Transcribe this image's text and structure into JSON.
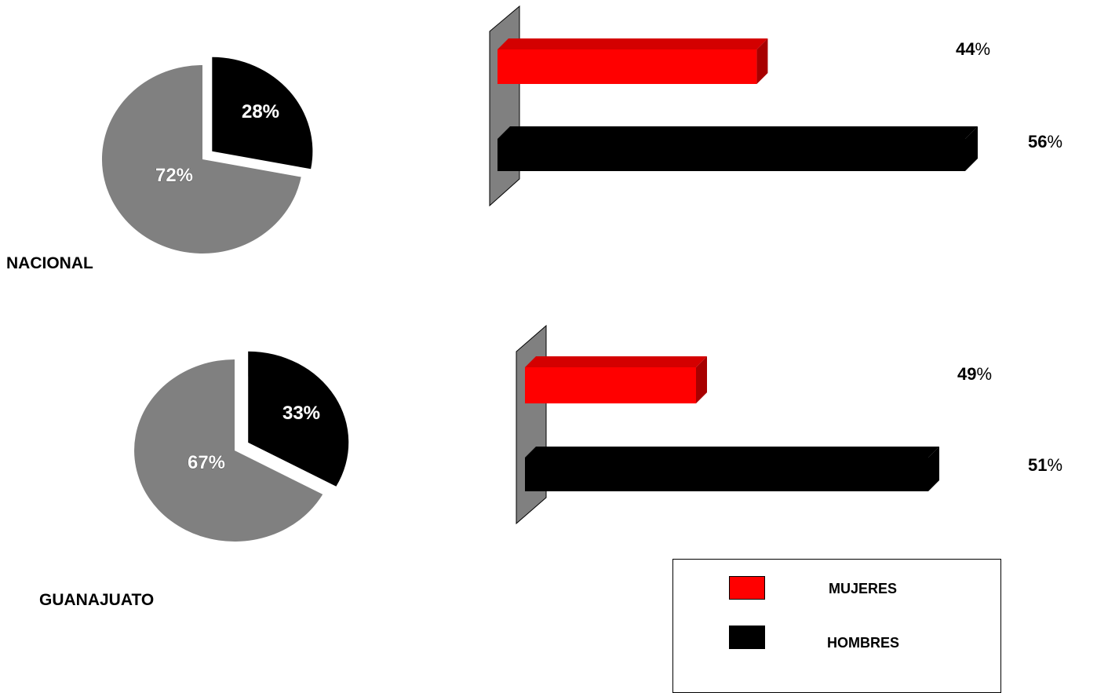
{
  "colors": {
    "mujeres": "#ff0000",
    "mujeres_dark": "#a80000",
    "mujeres_top": "#d40000",
    "hombres": "#000000",
    "pie_major": "#808080",
    "wall": "#808080"
  },
  "chart_data": [
    {
      "type": "pie",
      "title": "NACIONAL",
      "slices": [
        {
          "label": "28%",
          "value": 28,
          "color": "#000000",
          "exploded": true
        },
        {
          "label": "72%",
          "value": 72,
          "color": "#808080",
          "exploded": false
        }
      ]
    },
    {
      "type": "bar",
      "orientation": "horizontal",
      "series": [
        {
          "name": "MUJERES",
          "value": 44,
          "label_num": "44",
          "label_unit": "%"
        },
        {
          "name": "HOMBRES",
          "value": 56,
          "label_num": "56",
          "label_unit": "%"
        }
      ]
    },
    {
      "type": "pie",
      "title": "GUANAJUATO",
      "slices": [
        {
          "label": "33%",
          "value": 33,
          "color": "#000000",
          "exploded": true
        },
        {
          "label": "67%",
          "value": 67,
          "color": "#808080",
          "exploded": false
        }
      ]
    },
    {
      "type": "bar",
      "orientation": "horizontal",
      "series": [
        {
          "name": "MUJERES",
          "value": 49,
          "label_num": "49",
          "label_unit": "%"
        },
        {
          "name": "HOMBRES",
          "value": 51,
          "label_num": "51",
          "label_unit": "%"
        }
      ]
    }
  ],
  "legend": {
    "items": [
      {
        "label": "MUJERES",
        "color": "#ff0000"
      },
      {
        "label": "HOMBRES",
        "color": "#000000"
      }
    ]
  }
}
